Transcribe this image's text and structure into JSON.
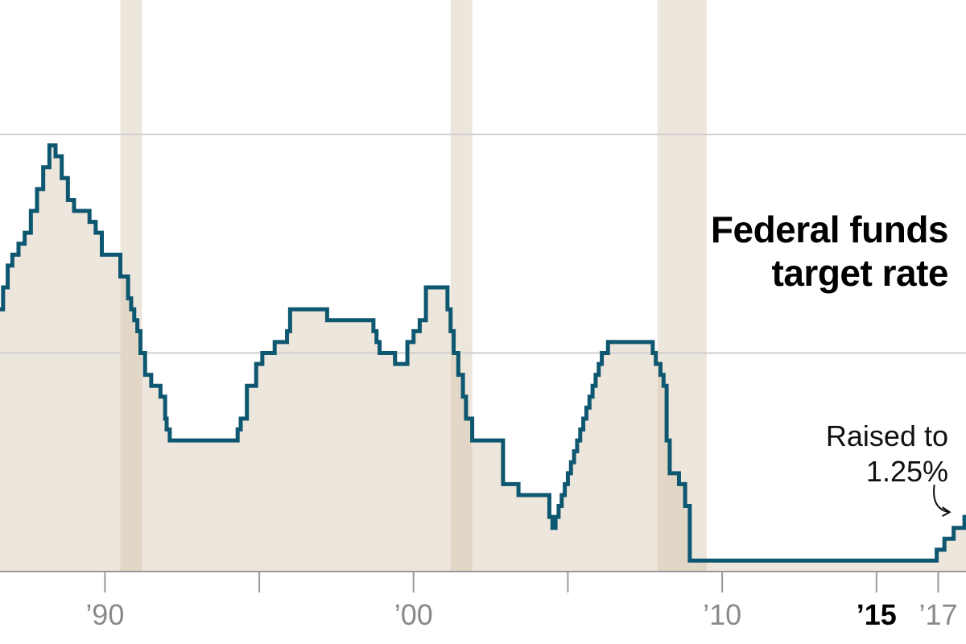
{
  "chart_data": {
    "type": "line",
    "step": true,
    "title_lines": [
      "Federal funds",
      "target rate"
    ],
    "annotation": {
      "lines": [
        "Raised to",
        "1.25%"
      ],
      "x": 2017.5,
      "y": 1.25
    },
    "colors": {
      "line": "#0e5770",
      "fill": "#ede6dc",
      "recession": "#ede6dc",
      "recession_overlap": "#e2d6c6",
      "grid": "#cfcfcf",
      "axis": "#9a9a9a"
    },
    "xlim": [
      1986.6,
      2017.9
    ],
    "ylim": [
      0,
      10
    ],
    "gridlines_y": [
      5,
      10
    ],
    "grid": true,
    "recessions": [
      [
        1990.5,
        1991.2
      ],
      [
        2001.2,
        2001.9
      ],
      [
        2007.9,
        2009.5
      ]
    ],
    "x_ticks": [
      1990,
      1995,
      2000,
      2005,
      2010,
      2015,
      2017
    ],
    "x_tick_labels": [
      {
        "x": 1990,
        "label": "’90",
        "bold": false
      },
      {
        "x": 2000,
        "label": "’00",
        "bold": false
      },
      {
        "x": 2010,
        "label": "’10",
        "bold": false
      },
      {
        "x": 2015,
        "label": "’15",
        "bold": true
      },
      {
        "x": 2017,
        "label": "’17",
        "bold": false
      }
    ],
    "series": [
      {
        "x": [
          1986.6,
          1986.7,
          1986.85,
          1987.0,
          1987.2,
          1987.4,
          1987.6,
          1987.8,
          1988.0,
          1988.2,
          1988.4,
          1988.6,
          1988.8,
          1989.0,
          1989.2,
          1989.35,
          1989.5,
          1989.7,
          1989.9,
          1990.5,
          1990.75,
          1990.85,
          1990.95,
          1991.05,
          1991.15,
          1991.3,
          1991.5,
          1991.8,
          1991.95,
          1992.0,
          1992.1,
          1992.3,
          1992.5,
          1992.7,
          1992.9,
          1994.1,
          1994.3,
          1994.4,
          1994.6,
          1994.9,
          1995.1,
          1995.5,
          1995.9,
          1996.0,
          1997.2,
          1998.7,
          1998.8,
          1998.9,
          1999.4,
          1999.6,
          1999.8,
          2000.0,
          2000.2,
          2000.4,
          2001.0,
          2001.1,
          2001.2,
          2001.3,
          2001.45,
          2001.6,
          2001.7,
          2001.9,
          2002.9,
          2003.4,
          2004.4,
          2004.5,
          2004.6,
          2004.7,
          2004.8,
          2004.9,
          2005.0,
          2005.1,
          2005.2,
          2005.3,
          2005.4,
          2005.5,
          2005.6,
          2005.7,
          2005.8,
          2005.9,
          2006.0,
          2006.1,
          2006.3,
          2006.5,
          2007.7,
          2007.75,
          2007.85,
          2008.0,
          2008.1,
          2008.2,
          2008.3,
          2008.6,
          2008.8,
          2008.95,
          2015.95,
          2016.95,
          2017.2,
          2017.5,
          2017.85,
          2017.9
        ],
        "y": [
          6.0,
          6.5,
          7.0,
          7.25,
          7.5,
          7.75,
          8.25,
          8.75,
          9.25,
          9.75,
          9.5,
          9.0,
          8.5,
          8.25,
          8.25,
          8.25,
          8.0,
          7.75,
          7.25,
          6.75,
          6.25,
          6.0,
          5.75,
          5.5,
          5.0,
          4.5,
          4.25,
          4.0,
          3.5,
          3.25,
          3.0,
          3.0,
          3.0,
          3.0,
          3.0,
          3.0,
          3.25,
          3.5,
          4.25,
          4.75,
          5.0,
          5.25,
          5.5,
          6.0,
          5.75,
          5.5,
          5.25,
          5.0,
          4.75,
          4.75,
          5.25,
          5.5,
          5.75,
          6.5,
          6.5,
          6.0,
          5.5,
          5.0,
          4.5,
          4.0,
          3.5,
          3.0,
          2.0,
          1.75,
          1.25,
          1.0,
          1.25,
          1.5,
          1.75,
          2.0,
          2.25,
          2.5,
          2.75,
          3.0,
          3.25,
          3.5,
          3.75,
          4.0,
          4.25,
          4.5,
          4.75,
          5.0,
          5.25,
          5.25,
          5.25,
          5.0,
          4.75,
          4.5,
          4.25,
          3.0,
          2.25,
          2.0,
          1.5,
          0.25,
          0.25,
          0.5,
          0.75,
          1.0,
          1.25,
          1.25
        ]
      }
    ]
  }
}
